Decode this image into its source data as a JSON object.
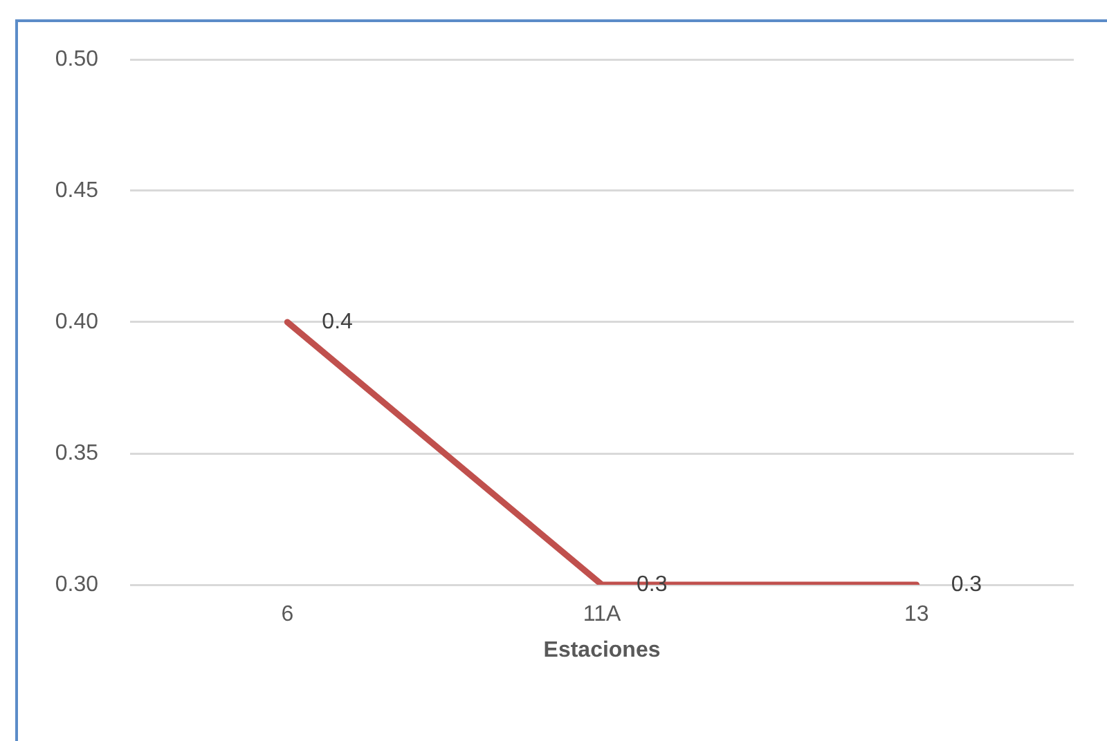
{
  "chart_data": {
    "type": "line",
    "xlabel": "Estaciones",
    "categories": [
      "6",
      "11A",
      "13"
    ],
    "series": [
      {
        "color": "#c0504d",
        "values": [
          0.4,
          0.3,
          0.3
        ]
      }
    ],
    "ylim": [
      0.3,
      0.5
    ],
    "yticks": [
      {
        "value": 0.3,
        "label": "0.30"
      },
      {
        "value": 0.35,
        "label": "0.35"
      },
      {
        "value": 0.4,
        "label": "0.40"
      },
      {
        "value": 0.45,
        "label": "0.45"
      },
      {
        "value": 0.5,
        "label": "0.50"
      }
    ],
    "grid": "y",
    "data_labels": true,
    "marker": "none"
  }
}
